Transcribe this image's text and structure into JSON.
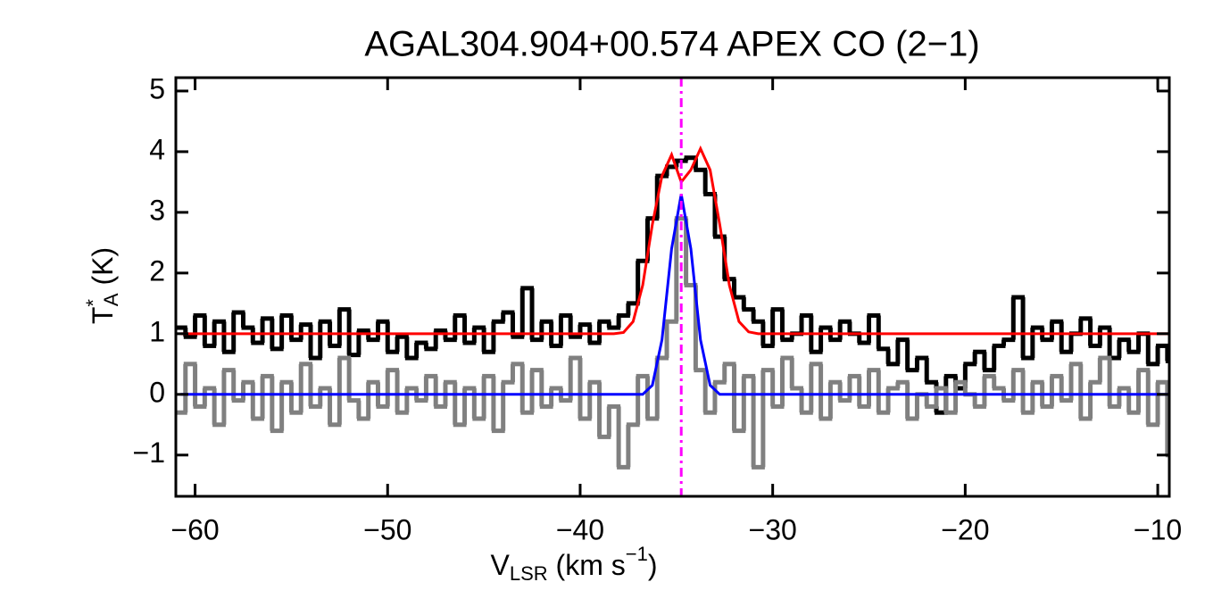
{
  "chart_data": {
    "type": "step",
    "title": "AGAL304.904+00.574  APEX CO (2−1)",
    "xlabel": {
      "base": "V",
      "sub": "LSR",
      "rest": " (km s",
      "sup": "−1",
      "close": ")"
    },
    "ylabel": {
      "base": "T",
      "sup": "*",
      "sub": "A",
      "rest": " (K)"
    },
    "xlim": [
      -61,
      -9.4
    ],
    "ylim": [
      -1.68,
      5.22
    ],
    "xticks": [
      {
        "value": -60,
        "label": "−60"
      },
      {
        "value": -50,
        "label": "−50"
      },
      {
        "value": -40,
        "label": "−40"
      },
      {
        "value": -30,
        "label": "−30"
      },
      {
        "value": -20,
        "label": "−20"
      },
      {
        "value": -10,
        "label": "−10"
      }
    ],
    "yticks": [
      {
        "value": -1,
        "label": "−1"
      },
      0,
      1,
      2,
      3,
      4,
      5
    ],
    "vline": {
      "x": -34.75,
      "color": "#ff00ff"
    },
    "x": [
      -60.75,
      -60.25,
      -59.75,
      -59.25,
      -58.75,
      -58.25,
      -57.75,
      -57.25,
      -56.75,
      -56.25,
      -55.75,
      -55.25,
      -54.75,
      -54.25,
      -53.75,
      -53.25,
      -52.75,
      -52.25,
      -51.75,
      -51.25,
      -50.75,
      -50.25,
      -49.75,
      -49.25,
      -48.75,
      -48.25,
      -47.75,
      -47.25,
      -46.75,
      -46.25,
      -45.75,
      -45.25,
      -44.75,
      -44.25,
      -43.75,
      -43.25,
      -42.75,
      -42.25,
      -41.75,
      -41.25,
      -40.75,
      -40.25,
      -39.75,
      -39.25,
      -38.75,
      -38.25,
      -37.75,
      -37.25,
      -36.75,
      -36.25,
      -35.75,
      -35.25,
      -34.75,
      -34.25,
      -33.75,
      -33.25,
      -32.75,
      -32.25,
      -31.75,
      -31.25,
      -30.75,
      -30.25,
      -29.75,
      -29.25,
      -28.75,
      -28.25,
      -27.75,
      -27.25,
      -26.75,
      -26.25,
      -25.75,
      -25.25,
      -24.75,
      -24.25,
      -23.75,
      -23.25,
      -22.75,
      -22.25,
      -21.75,
      -21.25,
      -20.75,
      -20.25,
      -19.75,
      -19.25,
      -18.75,
      -18.25,
      -17.75,
      -17.25,
      -16.75,
      -16.25,
      -15.75,
      -15.25,
      -14.75,
      -14.25,
      -13.75,
      -13.25,
      -12.75,
      -12.25,
      -11.75,
      -11.25,
      -10.75,
      -10.25,
      -9.75,
      -9.25
    ],
    "series": [
      {
        "color": "#000000",
        "style": "step",
        "values": [
          1.1,
          0.95,
          1.3,
          0.8,
          1.2,
          0.7,
          1.35,
          1.1,
          0.85,
          1.25,
          0.75,
          1.3,
          0.9,
          1.15,
          0.6,
          1.2,
          0.8,
          1.4,
          0.65,
          1.05,
          0.9,
          1.2,
          0.7,
          0.95,
          0.6,
          0.85,
          0.75,
          1.05,
          0.9,
          1.3,
          0.85,
          1.1,
          0.7,
          1.2,
          1.35,
          0.95,
          1.75,
          0.9,
          1.2,
          0.8,
          1.3,
          0.95,
          1.15,
          0.85,
          1.2,
          1.1,
          1.3,
          1.5,
          2.2,
          2.9,
          3.6,
          3.75,
          3.85,
          3.9,
          3.7,
          3.3,
          2.6,
          1.9,
          1.6,
          1.4,
          1.2,
          0.8,
          1.4,
          0.9,
          1.0,
          1.3,
          0.7,
          1.1,
          0.9,
          1.2,
          1.0,
          0.85,
          1.3,
          0.75,
          0.5,
          0.9,
          0.4,
          0.6,
          0.2,
          -0.3,
          0.3,
          0.1,
          0.5,
          0.7,
          0.4,
          0.8,
          0.9,
          1.6,
          0.6,
          1.1,
          0.9,
          1.2,
          0.7,
          1.0,
          1.25,
          0.8,
          1.1,
          0.6,
          0.9,
          0.7,
          1.0,
          0.5,
          0.8,
          0.55
        ]
      },
      {
        "color": "#808080",
        "style": "step",
        "values": [
          -0.3,
          0.5,
          -0.2,
          0.1,
          -0.5,
          0.4,
          -0.1,
          0.2,
          -0.4,
          0.3,
          -0.6,
          0.2,
          -0.3,
          0.5,
          -0.2,
          0.1,
          -0.5,
          0.6,
          -0.1,
          -0.4,
          0.2,
          -0.2,
          0.4,
          -0.3,
          0.1,
          -0.1,
          0.3,
          -0.2,
          0.2,
          -0.5,
          0.1,
          -0.4,
          0.3,
          -0.6,
          0.2,
          0.5,
          -0.3,
          0.4,
          -0.2,
          0.1,
          -0.1,
          0.6,
          -0.4,
          0.2,
          -0.7,
          -0.2,
          -1.2,
          -0.5,
          0.3,
          -0.4,
          0.6,
          1.2,
          2.9,
          1.8,
          0.4,
          -0.3,
          0.2,
          0.5,
          -0.6,
          0.3,
          -1.2,
          0.4,
          -0.2,
          0.6,
          0.1,
          -0.3,
          0.5,
          -0.4,
          0.2,
          -0.1,
          0.3,
          -0.2,
          0.4,
          -0.3,
          0.1,
          0.2,
          -0.4,
          0.0,
          -0.2,
          0.1,
          -0.3,
          0.2,
          0.0,
          -0.2,
          0.3,
          0.1,
          -0.1,
          0.4,
          -0.3,
          0.2,
          -0.2,
          0.3,
          -0.1,
          0.5,
          -0.4,
          0.2,
          0.6,
          -0.2,
          0.1,
          -0.3,
          0.4,
          -0.5,
          0.2,
          -1.0
        ]
      },
      {
        "color": "#0000ff",
        "style": "line",
        "values": [
          0,
          0,
          0,
          0,
          0,
          0,
          0,
          0,
          0,
          0,
          0,
          0,
          0,
          0,
          0,
          0,
          0,
          0,
          0,
          0,
          0,
          0,
          0,
          0,
          0,
          0,
          0,
          0,
          0,
          0,
          0,
          0,
          0,
          0,
          0,
          0,
          0,
          0,
          0,
          0,
          0,
          0,
          0,
          0,
          0,
          0,
          0,
          0,
          0,
          0.15,
          0.9,
          2.4,
          3.3,
          2.4,
          0.9,
          0.15,
          0,
          0,
          0,
          0,
          0,
          0,
          0,
          0,
          0,
          0,
          0,
          0,
          0,
          0,
          0,
          0,
          0,
          0,
          0,
          0,
          0,
          0,
          0,
          0,
          0,
          0,
          0,
          0,
          0,
          0,
          0,
          0,
          0,
          0,
          0,
          0,
          0,
          0,
          0,
          0,
          0,
          0,
          0,
          0,
          0,
          0,
          0,
          0
        ]
      },
      {
        "color": "#ff0000",
        "style": "line",
        "values": [
          1,
          1,
          1,
          1,
          1,
          1,
          1,
          1,
          1,
          1,
          1,
          1,
          1,
          1,
          1,
          1,
          1,
          1,
          1,
          1,
          1,
          1,
          1,
          1,
          1,
          1,
          1,
          1,
          1,
          1,
          1,
          1,
          1,
          1,
          1,
          1,
          1,
          1,
          1,
          1,
          1,
          1,
          1,
          1,
          1,
          1.0,
          1.02,
          1.2,
          1.8,
          2.8,
          3.6,
          3.95,
          3.5,
          3.7,
          4.05,
          3.7,
          2.8,
          1.8,
          1.2,
          1.03,
          1,
          1,
          1,
          1,
          1,
          1,
          1,
          1,
          1,
          1,
          1,
          1,
          1,
          1,
          1,
          1,
          1,
          1,
          1,
          1,
          1,
          1,
          1,
          1,
          1,
          1,
          1,
          1,
          1,
          1,
          1,
          1,
          1,
          1,
          1,
          1,
          1,
          1,
          1,
          1,
          1,
          1,
          1,
          1
        ]
      }
    ]
  }
}
